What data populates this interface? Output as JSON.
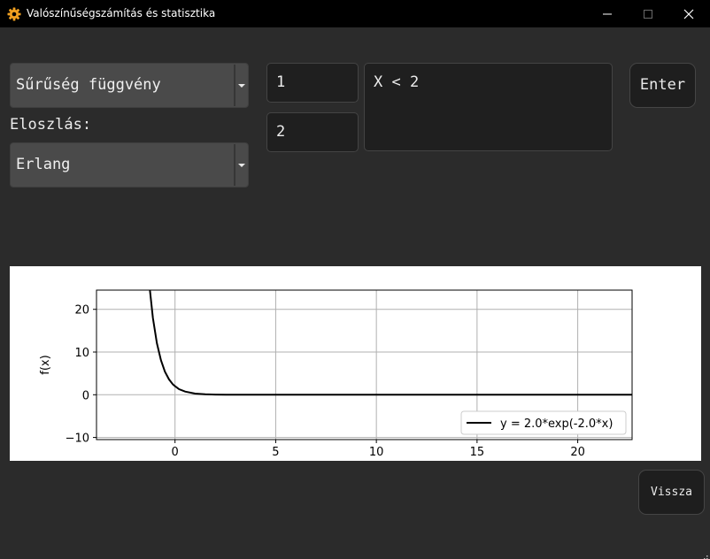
{
  "window": {
    "title": "Valószínűségszámítás és statisztika",
    "icon": "gear-icon",
    "controls": [
      "minimize-icon",
      "maximize-icon",
      "close-icon"
    ]
  },
  "function_select": {
    "value": "Sűrűség függvény"
  },
  "distribution": {
    "label": "Eloszlás:",
    "value": "Erlang"
  },
  "params": {
    "first": "1",
    "second": "2"
  },
  "query": {
    "value": "X < 2"
  },
  "buttons": {
    "enter": "Enter",
    "back": "Vissza"
  },
  "colors": {
    "background": "#2b2b2b",
    "titlebar": "#000000",
    "combo": "#4a4a4a",
    "field": "#1f1f1f",
    "plot_bg": "#ffffff",
    "curve": "#000000"
  },
  "chart_data": {
    "type": "line",
    "xlabel": "",
    "ylabel": "f(x)",
    "xlim": [
      -3.9,
      22.7
    ],
    "ylim": [
      -10.5,
      24.5
    ],
    "xticks": [
      0,
      5,
      10,
      15,
      20
    ],
    "yticks": [
      -10,
      0,
      10,
      20
    ],
    "grid": true,
    "legend_position": "lower-right",
    "series": [
      {
        "name": "y = 2.0*exp(-2.0*x)",
        "color": "#000000",
        "x": [
          -1.3,
          -1.1,
          -0.9,
          -0.7,
          -0.5,
          -0.3,
          -0.1,
          0,
          0.2,
          0.5,
          1,
          1.5,
          2,
          3,
          5,
          10,
          15,
          20,
          22.7
        ],
        "y": [
          26.9,
          18.0,
          12.1,
          8.1,
          5.4,
          3.6,
          2.4,
          2.0,
          1.3,
          0.74,
          0.27,
          0.1,
          0.04,
          0.005,
          0,
          0,
          0,
          0,
          0
        ]
      }
    ]
  }
}
